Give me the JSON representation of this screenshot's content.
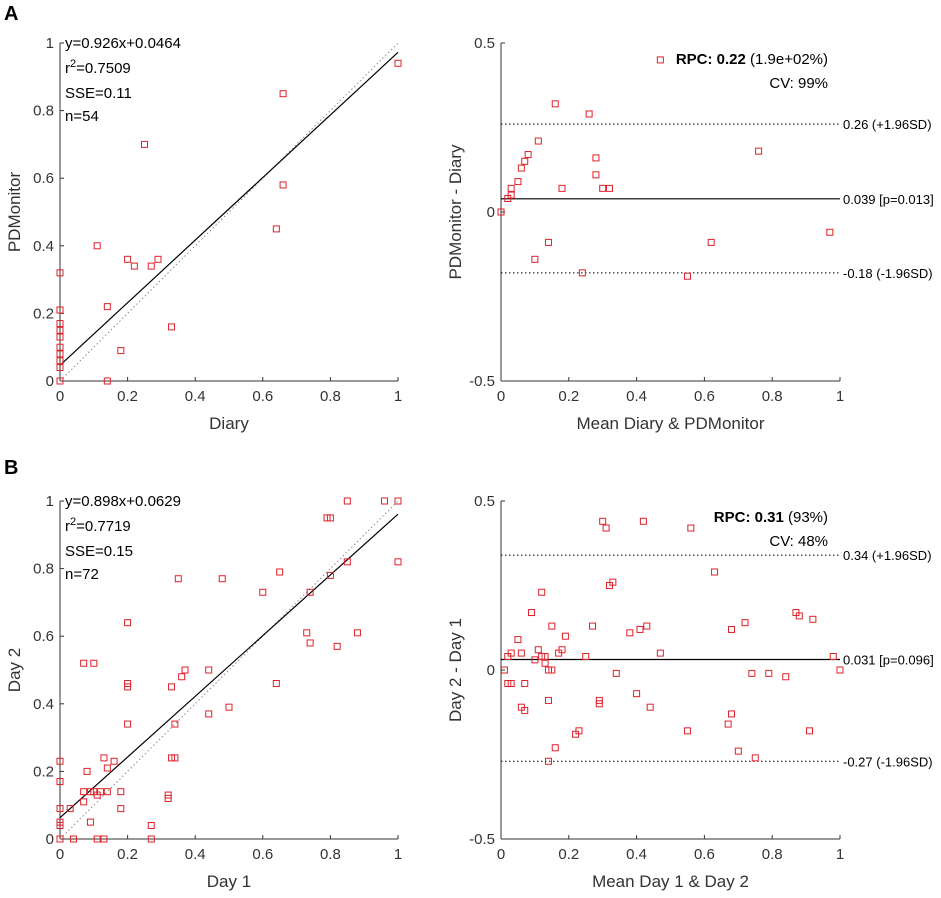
{
  "panel_labels": [
    "A",
    "B"
  ],
  "colors": {
    "marker": "#e0202a",
    "line": "#000000",
    "identity": "#8a8a8a",
    "axis": "#333333"
  },
  "chart_data": [
    {
      "type": "scatter",
      "id": "A-scatter",
      "xlabel": "Diary",
      "ylabel": "PDMonitor",
      "xlim": [
        0,
        1
      ],
      "ylim": [
        0,
        1
      ],
      "xticks": [
        "0",
        "0.2",
        "0.4",
        "0.6",
        "0.8",
        "1"
      ],
      "yticks": [
        "0",
        "0.2",
        "0.4",
        "0.6",
        "0.8",
        "1"
      ],
      "fit": {
        "slope": 0.926,
        "intercept": 0.0464
      },
      "annotations": {
        "eq": "y=0.926x+0.0464",
        "r2_prefix": "r",
        "r2_sup": "2",
        "r2_value": "=0.7509",
        "sse": "SSE=0.11",
        "n": "n=54"
      },
      "points": [
        [
          0,
          0
        ],
        [
          0,
          0.04
        ],
        [
          0,
          0.06
        ],
        [
          0,
          0.08
        ],
        [
          0,
          0.1
        ],
        [
          0,
          0.13
        ],
        [
          0,
          0.15
        ],
        [
          0,
          0.17
        ],
        [
          0,
          0.21
        ],
        [
          0,
          0.32
        ],
        [
          0.11,
          0.4
        ],
        [
          0.14,
          0
        ],
        [
          0.14,
          0.22
        ],
        [
          0.18,
          0.09
        ],
        [
          0.2,
          0.36
        ],
        [
          0.22,
          0.34
        ],
        [
          0.25,
          0.7
        ],
        [
          0.27,
          0.34
        ],
        [
          0.29,
          0.36
        ],
        [
          0.33,
          0.16
        ],
        [
          0.64,
          0.45
        ],
        [
          0.66,
          0.58
        ],
        [
          0.66,
          0.85
        ],
        [
          1.0,
          0.94
        ]
      ]
    },
    {
      "type": "scatter",
      "id": "A-bland-altman",
      "xlabel": "Mean Diary & PDMonitor",
      "ylabel": "PDMonitor - Diary",
      "xlim": [
        0,
        1
      ],
      "ylim": [
        -0.5,
        0.5
      ],
      "xticks": [
        "0",
        "0.2",
        "0.4",
        "0.6",
        "0.8",
        "1"
      ],
      "yticks": [
        "-0.5",
        "0",
        "0.5"
      ],
      "mean": 0.039,
      "upper": 0.26,
      "lower": -0.18,
      "mean_label": "0.039 [p=0.013]",
      "upper_label": "0.26 (+1.96SD)",
      "lower_label": "-0.18 (-1.96SD)",
      "rpc_label": "RPC: 0.22",
      "rpc_pct": " (1.9e+02%)",
      "cv_label": "CV: 99%",
      "points": [
        [
          0,
          0
        ],
        [
          0.02,
          0.04
        ],
        [
          0.03,
          0.05
        ],
        [
          0.03,
          0.07
        ],
        [
          0.05,
          0.09
        ],
        [
          0.06,
          0.13
        ],
        [
          0.07,
          0.15
        ],
        [
          0.08,
          0.17
        ],
        [
          0.11,
          0.21
        ],
        [
          0.14,
          -0.09
        ],
        [
          0.16,
          0.32
        ],
        [
          0.18,
          0.07
        ],
        [
          0.1,
          -0.14
        ],
        [
          0.24,
          -0.18
        ],
        [
          0.26,
          0.29
        ],
        [
          0.28,
          0.16
        ],
        [
          0.28,
          0.11
        ],
        [
          0.3,
          0.07
        ],
        [
          0.32,
          0.07
        ],
        [
          0.47,
          0.45
        ],
        [
          0.55,
          -0.19
        ],
        [
          0.62,
          -0.09
        ],
        [
          0.76,
          0.18
        ],
        [
          0.97,
          -0.06
        ]
      ]
    },
    {
      "type": "scatter",
      "id": "B-scatter",
      "xlabel": "Day 1",
      "ylabel": "Day 2",
      "xlim": [
        0,
        1
      ],
      "ylim": [
        0,
        1
      ],
      "xticks": [
        "0",
        "0.2",
        "0.4",
        "0.6",
        "0.8",
        "1"
      ],
      "yticks": [
        "0",
        "0.2",
        "0.4",
        "0.6",
        "0.8",
        "1"
      ],
      "fit": {
        "slope": 0.898,
        "intercept": 0.0629
      },
      "annotations": {
        "eq": "y=0.898x+0.0629",
        "r2_prefix": "r",
        "r2_sup": "2",
        "r2_value": "=0.7719",
        "sse": "SSE=0.15",
        "n": "n=72"
      },
      "points": [
        [
          0,
          0
        ],
        [
          0,
          0.04
        ],
        [
          0,
          0.05
        ],
        [
          0,
          0.09
        ],
        [
          0,
          0.17
        ],
        [
          0,
          0.23
        ],
        [
          0.03,
          0.09
        ],
        [
          0.04,
          0
        ],
        [
          0.07,
          0.11
        ],
        [
          0.07,
          0.14
        ],
        [
          0.07,
          0.52
        ],
        [
          0.08,
          0.2
        ],
        [
          0.09,
          0.05
        ],
        [
          0.09,
          0.14
        ],
        [
          0.1,
          0.14
        ],
        [
          0.1,
          0.52
        ],
        [
          0.11,
          0
        ],
        [
          0.11,
          0.13
        ],
        [
          0.12,
          0.14
        ],
        [
          0.13,
          0
        ],
        [
          0.13,
          0.24
        ],
        [
          0.14,
          0.14
        ],
        [
          0.14,
          0.21
        ],
        [
          0.16,
          0.23
        ],
        [
          0.18,
          0.09
        ],
        [
          0.18,
          0.14
        ],
        [
          0.2,
          0.34
        ],
        [
          0.2,
          0.45
        ],
        [
          0.2,
          0.46
        ],
        [
          0.2,
          0.64
        ],
        [
          0.27,
          0
        ],
        [
          0.27,
          0.04
        ],
        [
          0.32,
          0.12
        ],
        [
          0.32,
          0.13
        ],
        [
          0.33,
          0.24
        ],
        [
          0.33,
          0.45
        ],
        [
          0.34,
          0.34
        ],
        [
          0.34,
          0.24
        ],
        [
          0.35,
          0.77
        ],
        [
          0.36,
          0.48
        ],
        [
          0.37,
          0.5
        ],
        [
          0.44,
          0.37
        ],
        [
          0.44,
          0.5
        ],
        [
          0.48,
          0.77
        ],
        [
          0.5,
          0.39
        ],
        [
          0.6,
          0.73
        ],
        [
          0.64,
          0.46
        ],
        [
          0.65,
          0.79
        ],
        [
          0.73,
          0.61
        ],
        [
          0.74,
          0.58
        ],
        [
          0.74,
          0.73
        ],
        [
          0.79,
          0.95
        ],
        [
          0.8,
          0.95
        ],
        [
          0.8,
          0.78
        ],
        [
          0.82,
          0.57
        ],
        [
          0.85,
          0.82
        ],
        [
          0.85,
          1.0
        ],
        [
          0.88,
          0.61
        ],
        [
          0.96,
          1.0
        ],
        [
          1.0,
          0.82
        ],
        [
          1.0,
          1.0
        ]
      ]
    },
    {
      "type": "scatter",
      "id": "B-bland-altman",
      "xlabel": "Mean Day 1 & Day 2",
      "ylabel": "Day 2 - Day 1",
      "xlim": [
        0,
        1
      ],
      "ylim": [
        -0.5,
        0.5
      ],
      "xticks": [
        "0",
        "0.2",
        "0.4",
        "0.6",
        "0.8",
        "1"
      ],
      "yticks": [
        "-0.5",
        "0",
        "0.5"
      ],
      "mean": 0.031,
      "upper": 0.34,
      "lower": -0.27,
      "mean_label": "0.031 [p=0.096]",
      "upper_label": "0.34 (+1.96SD)",
      "lower_label": "-0.27 (-1.96SD)",
      "rpc_label": "RPC: 0.31",
      "rpc_pct": " (93%)",
      "cv_label": "CV: 48%",
      "points": [
        [
          0.01,
          0
        ],
        [
          0.02,
          -0.04
        ],
        [
          0.02,
          0.04
        ],
        [
          0.03,
          -0.04
        ],
        [
          0.03,
          0.05
        ],
        [
          0.05,
          0.09
        ],
        [
          0.06,
          -0.11
        ],
        [
          0.06,
          0.05
        ],
        [
          0.07,
          -0.12
        ],
        [
          0.07,
          -0.04
        ],
        [
          0.09,
          0.17
        ],
        [
          0.1,
          0.03
        ],
        [
          0.11,
          0.06
        ],
        [
          0.12,
          0.04
        ],
        [
          0.12,
          0.23
        ],
        [
          0.13,
          0.02
        ],
        [
          0.13,
          0.04
        ],
        [
          0.14,
          -0.27
        ],
        [
          0.14,
          -0.09
        ],
        [
          0.14,
          0
        ],
        [
          0.15,
          0
        ],
        [
          0.15,
          0.13
        ],
        [
          0.16,
          -0.23
        ],
        [
          0.17,
          0.05
        ],
        [
          0.18,
          0.06
        ],
        [
          0.19,
          0.1
        ],
        [
          0.22,
          -0.19
        ],
        [
          0.23,
          -0.18
        ],
        [
          0.25,
          0.04
        ],
        [
          0.27,
          0.13
        ],
        [
          0.29,
          -0.1
        ],
        [
          0.29,
          -0.09
        ],
        [
          0.3,
          0.44
        ],
        [
          0.31,
          0.42
        ],
        [
          0.32,
          0.25
        ],
        [
          0.33,
          0.26
        ],
        [
          0.34,
          -0.01
        ],
        [
          0.38,
          0.11
        ],
        [
          0.4,
          -0.07
        ],
        [
          0.41,
          0.12
        ],
        [
          0.42,
          0.44
        ],
        [
          0.43,
          0.13
        ],
        [
          0.44,
          -0.11
        ],
        [
          0.47,
          0.05
        ],
        [
          0.55,
          -0.18
        ],
        [
          0.56,
          0.42
        ],
        [
          0.63,
          0.29
        ],
        [
          0.67,
          -0.16
        ],
        [
          0.68,
          -0.13
        ],
        [
          0.68,
          0.12
        ],
        [
          0.7,
          -0.24
        ],
        [
          0.72,
          0.14
        ],
        [
          0.74,
          -0.01
        ],
        [
          0.75,
          -0.26
        ],
        [
          0.79,
          -0.01
        ],
        [
          0.84,
          -0.02
        ],
        [
          0.87,
          0.17
        ],
        [
          0.88,
          0.16
        ],
        [
          0.91,
          -0.18
        ],
        [
          0.92,
          0.15
        ],
        [
          0.98,
          0.04
        ],
        [
          1.0,
          0
        ]
      ]
    }
  ]
}
